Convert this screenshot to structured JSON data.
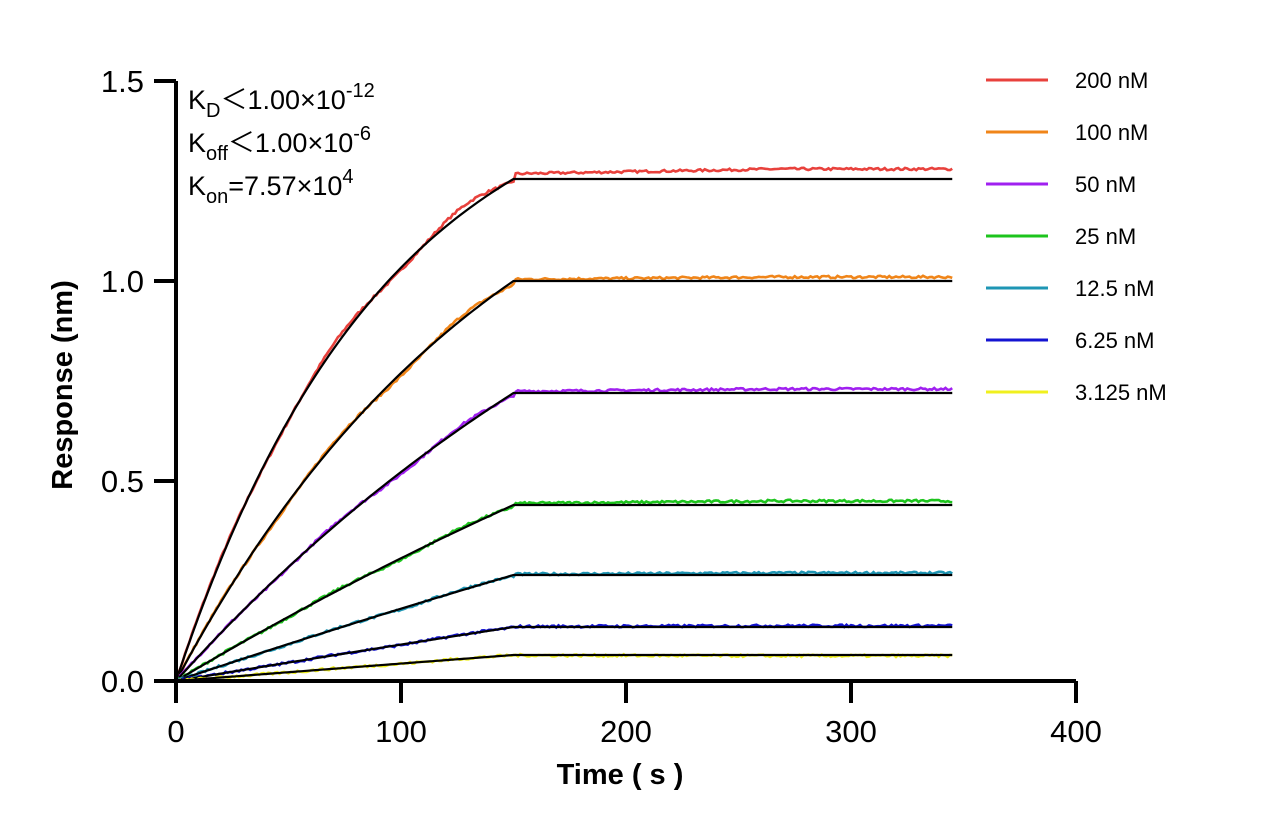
{
  "chart_data": {
    "type": "line",
    "xlabel": "Time ( s )",
    "ylabel": "Response (nm)",
    "xlim": [
      0,
      400
    ],
    "ylim": [
      0,
      1.5
    ],
    "x_ticks": [
      0,
      100,
      200,
      300,
      400
    ],
    "x_tick_labels": [
      "0",
      "100",
      "200",
      "300",
      "400"
    ],
    "y_ticks": [
      0,
      0.5,
      1.0,
      1.5
    ],
    "y_tick_labels": [
      "0.0",
      "0.5",
      "1.0",
      "1.5"
    ],
    "grid": false,
    "legend_position": "top-right",
    "association_end_s": 150,
    "end_time_s": 345,
    "fit_color": "#000000",
    "annotations": {
      "kd": {
        "symbol": "K",
        "sub": "D",
        "text": "＜1.00×10",
        "exp": "-12"
      },
      "koff": {
        "symbol": "K",
        "sub": "off",
        "text": "＜1.00×10",
        "exp": "-6"
      },
      "kon": {
        "symbol": "K",
        "sub": "on",
        "text": "=7.57×10",
        "exp": "4"
      }
    },
    "series": [
      {
        "name": "200 nM",
        "color": "#E8413C",
        "plateau": 1.26,
        "curvature": 1.62,
        "dissociation_level": 1.28,
        "fit_plateau": 1.255
      },
      {
        "name": "100 nM",
        "color": "#F08519",
        "plateau": 1.0,
        "curvature": 1.0,
        "dissociation_level": 1.01,
        "fit_plateau": 1.0
      },
      {
        "name": "50 nM",
        "color": "#A020F0",
        "plateau": 0.72,
        "curvature": 0.55,
        "dissociation_level": 0.73,
        "fit_plateau": 0.72
      },
      {
        "name": "25 nM",
        "color": "#1DC41D",
        "plateau": 0.44,
        "curvature": 0.28,
        "dissociation_level": 0.45,
        "fit_plateau": 0.44
      },
      {
        "name": "12.5 nM",
        "color": "#1E96B4",
        "plateau": 0.265,
        "curvature": 0.14,
        "dissociation_level": 0.27,
        "fit_plateau": 0.265
      },
      {
        "name": "6.25 nM",
        "color": "#1414D2",
        "plateau": 0.135,
        "curvature": 0.07,
        "dissociation_level": 0.138,
        "fit_plateau": 0.135
      },
      {
        "name": "3.125 nM",
        "color": "#F0F01E",
        "plateau": 0.065,
        "curvature": 0.035,
        "dissociation_level": 0.063,
        "fit_plateau": 0.065
      }
    ]
  }
}
